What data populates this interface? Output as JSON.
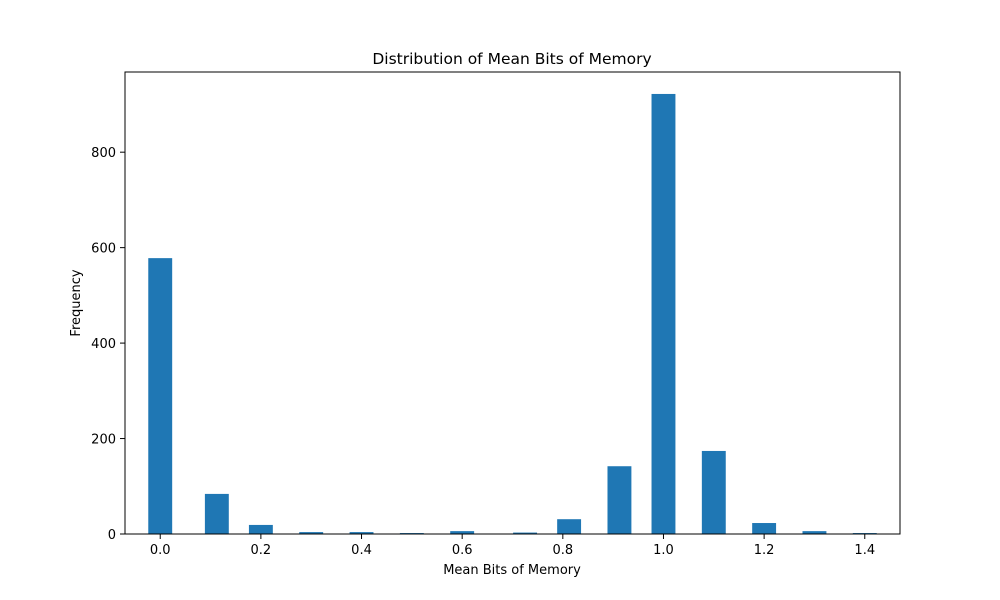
{
  "chart_data": {
    "type": "bar",
    "title": "Distribution of Mean Bits of Memory",
    "xlabel": "Mean Bits of Memory",
    "ylabel": "Frequency",
    "x": [
      0.0,
      0.1125,
      0.2,
      0.3,
      0.4,
      0.5,
      0.6,
      0.725,
      0.8125,
      0.9125,
      1.0,
      1.1,
      1.2,
      1.3,
      1.4
    ],
    "values": [
      578,
      84,
      19,
      4,
      4,
      2,
      6,
      3,
      31,
      142,
      922,
      174,
      23,
      6,
      2
    ],
    "bar_width": 0.0475,
    "xlim": [
      -0.07,
      1.47
    ],
    "ylim": [
      0,
      968
    ],
    "xticks": [
      0.0,
      0.2,
      0.4,
      0.6,
      0.8,
      1.0,
      1.2,
      1.4
    ],
    "xtick_labels": [
      "0.0",
      "0.2",
      "0.4",
      "0.6",
      "0.8",
      "1.0",
      "1.2",
      "1.4"
    ],
    "yticks": [
      0,
      200,
      400,
      600,
      800
    ],
    "ytick_labels": [
      "0",
      "200",
      "400",
      "600",
      "800"
    ],
    "grid": false,
    "bar_color": "#1f77b4"
  }
}
